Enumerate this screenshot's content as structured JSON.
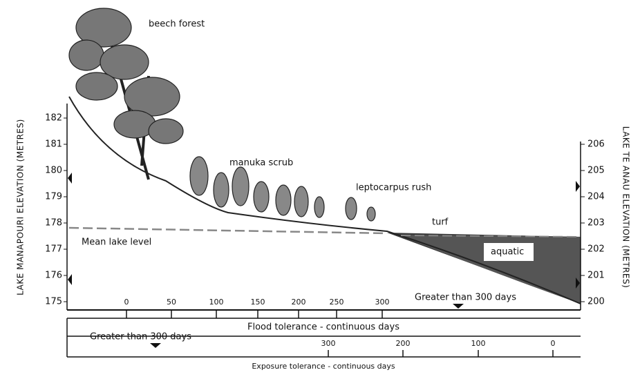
{
  "labels": {
    "beech": "beech forest",
    "manuka": "manuka scrub",
    "leptocarpus": "leptocarpus rush",
    "turf": "turf",
    "aquatic": "aquatic",
    "mean_lake": "Mean lake level"
  },
  "left_axis": {
    "title": "LAKE MANAPOURI ELEVATION (METRES)",
    "ticks": [
      175,
      176,
      177,
      178,
      179,
      180,
      181,
      182
    ]
  },
  "right_axis": {
    "title": "LAKE TE ANAU ELEVATION (METRES)",
    "ticks": [
      200,
      201,
      202,
      203,
      204,
      205,
      206
    ]
  },
  "flood_scale": {
    "title": "Flood tolerance - continuous days",
    "ticks": [
      0,
      50,
      100,
      150,
      200,
      250,
      300
    ],
    "note": "Greater than 300 days"
  },
  "exposure_scale": {
    "title": "Exposure tolerance - continuous days",
    "ticks": [
      300,
      200,
      100,
      0
    ],
    "note": "Greater than 300 days"
  }
}
